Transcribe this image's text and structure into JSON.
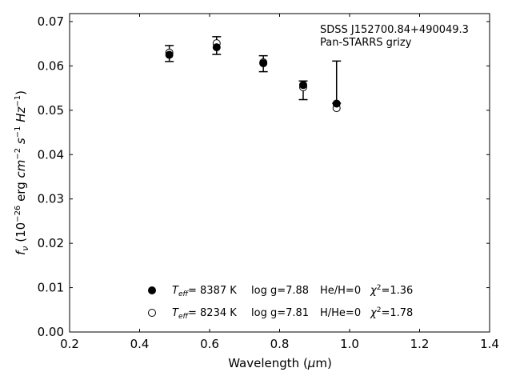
{
  "chart_data": {
    "type": "scatter",
    "xlabel": "Wavelength (μm)",
    "ylabel": "f_ν (10^-26 erg cm^-2 s^-1 Hz^-1)",
    "xlim": [
      0.2,
      1.4
    ],
    "ylim": [
      0.0,
      0.0718
    ],
    "xticks": [
      "0.2",
      "0.4",
      "0.6",
      "0.8",
      "1.0",
      "1.2",
      "1.4"
    ],
    "yticks": [
      "0.00",
      "0.01",
      "0.02",
      "0.03",
      "0.04",
      "0.05",
      "0.06",
      "0.07"
    ],
    "grid": false,
    "annotations": [
      "SDSS J152700.84+490049.3",
      "Pan-STARRS grizy"
    ],
    "observed": {
      "x": [
        0.4849,
        0.6201,
        0.7535,
        0.8674,
        0.9628
      ],
      "y": [
        0.0627,
        0.0645,
        0.0605,
        0.0545,
        0.0516
      ],
      "yerr_low": [
        0.0017,
        0.0019,
        0.0018,
        0.0021,
        0.0
      ],
      "yerr_high": [
        0.0019,
        0.0021,
        0.0018,
        0.0021,
        0.0095
      ]
    },
    "series": [
      {
        "marker": "filled-circle",
        "x": [
          0.4849,
          0.6201,
          0.7535,
          0.8674,
          0.9628
        ],
        "y": [
          0.0625,
          0.0642,
          0.0606,
          0.0557,
          0.0515
        ]
      },
      {
        "marker": "open-circle",
        "x": [
          0.4849,
          0.6201,
          0.7535,
          0.8674,
          0.9628
        ],
        "y": [
          0.063,
          0.0651,
          0.0608,
          0.0552,
          0.0505
        ]
      }
    ],
    "legend": {
      "position": "lower-center",
      "entries": [
        {
          "marker": "filled-circle",
          "teff_symbol": "T",
          "teff_sub": "eff",
          "teff": "=  8387 K",
          "logg": "log g=7.88",
          "comp": "He/H=0",
          "chi_label": "χ",
          "chi_sup": "2",
          "chi": "=1.36"
        },
        {
          "marker": "open-circle",
          "teff_symbol": "T",
          "teff_sub": "eff",
          "teff": "=  8234 K",
          "logg": "log g=7.81",
          "comp": "H/He=0",
          "chi_label": "χ",
          "chi_sup": "2",
          "chi": "=1.78"
        }
      ]
    },
    "colors": {
      "marker": "#000000",
      "axis": "#000000",
      "background": "#ffffff"
    }
  }
}
